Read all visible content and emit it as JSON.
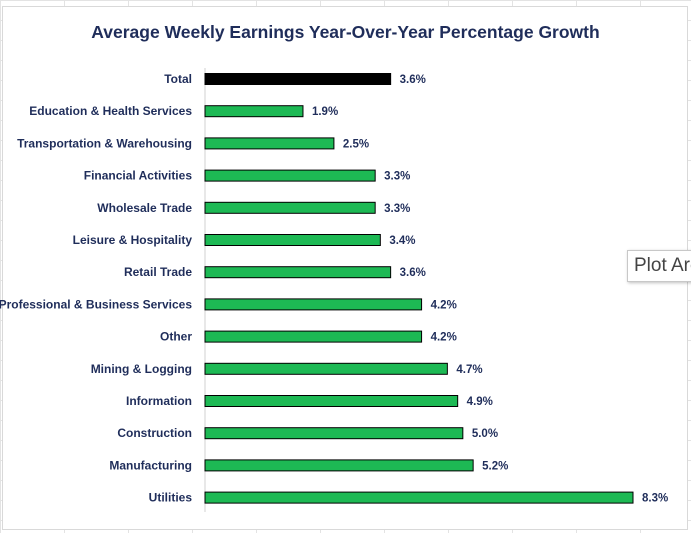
{
  "chart_data": {
    "type": "bar",
    "orientation": "horizontal",
    "title": "Average Weekly Earnings Year-Over-Year Percentage Growth",
    "categories": [
      "Total",
      "Education & Health Services",
      "Transportation & Warehousing",
      "Financial Activities",
      "Wholesale Trade",
      "Leisure & Hospitality",
      "Retail Trade",
      "Professional & Business Services",
      "Other",
      "Mining & Logging",
      "Information",
      "Construction",
      "Manufacturing",
      "Utilities"
    ],
    "values": [
      3.6,
      1.9,
      2.5,
      3.3,
      3.3,
      3.4,
      3.6,
      4.2,
      4.2,
      4.7,
      4.9,
      5.0,
      5.2,
      8.3
    ],
    "value_labels": [
      "3.6%",
      "1.9%",
      "2.5%",
      "3.3%",
      "3.3%",
      "3.4%",
      "3.6%",
      "4.2%",
      "4.2%",
      "4.7%",
      "4.9%",
      "5.0%",
      "5.2%",
      "8.3%"
    ],
    "xlim": [
      0,
      8.3
    ],
    "colors": {
      "highlight": "#000000",
      "default": "#1db954",
      "bar_border": "#000000"
    },
    "highlight_index": 0,
    "grid": false,
    "legend": "none"
  },
  "tooltip": {
    "text": "Plot Area"
  }
}
